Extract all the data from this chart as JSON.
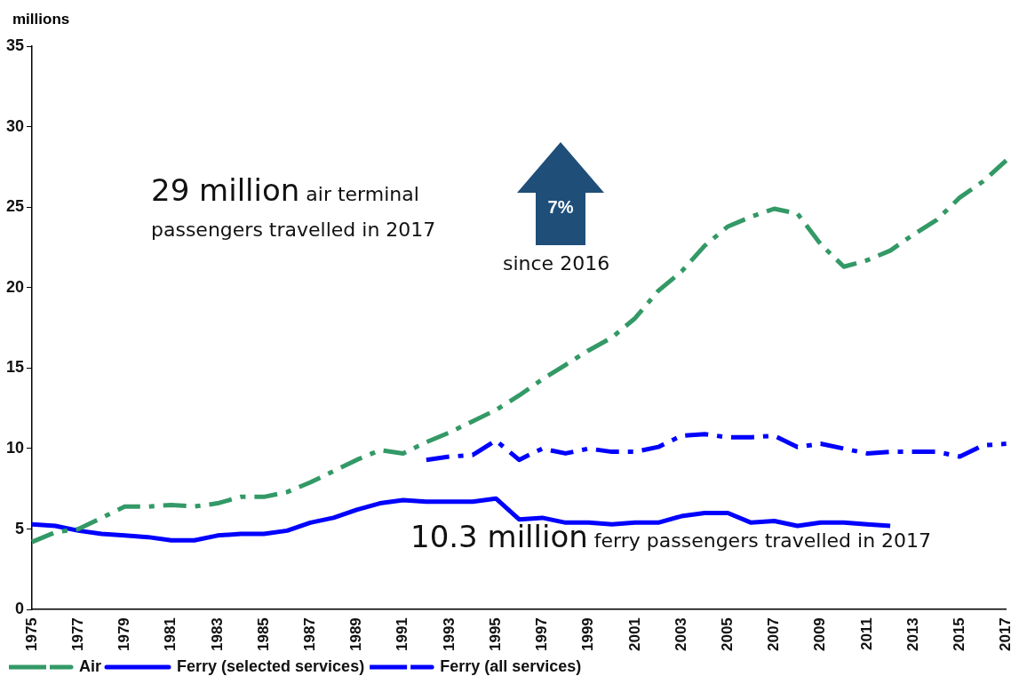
{
  "chart_data": {
    "type": "line",
    "ylabel": "millions",
    "categories": [
      "1975",
      null,
      "1977",
      null,
      "1979",
      null,
      "1981",
      null,
      "1983",
      null,
      "1985",
      null,
      "1987",
      null,
      "1989",
      null,
      "1991",
      null,
      "1993",
      null,
      "1995",
      null,
      "1997",
      null,
      "1999",
      null,
      "2001",
      null,
      "2003",
      null,
      "2005",
      null,
      "2007",
      null,
      "2009",
      null,
      "2011",
      null,
      "2013",
      null,
      "2015",
      null,
      "2017"
    ],
    "series": [
      {
        "name": "Air",
        "color": "#339966",
        "line_style": "dashed",
        "values": [
          4.2,
          4.8,
          5.0,
          5.7,
          6.4,
          6.4,
          6.5,
          6.4,
          6.6,
          7.0,
          7.0,
          7.3,
          7.9,
          8.6,
          9.3,
          9.9,
          9.7,
          10.4,
          11.0,
          11.7,
          12.4,
          13.3,
          14.3,
          15.2,
          16.1,
          16.9,
          18.1,
          19.8,
          21.0,
          22.6,
          23.8,
          24.4,
          24.9,
          24.6,
          22.7,
          21.3,
          21.7,
          22.3,
          23.3,
          24.2,
          25.6,
          26.6,
          27.9
        ]
      },
      {
        "name": "Ferry (selected services)",
        "color": "#0000ff",
        "line_style": "solid",
        "values": [
          5.3,
          5.2,
          4.9,
          4.7,
          4.6,
          4.5,
          4.3,
          4.3,
          4.6,
          4.7,
          4.7,
          4.9,
          5.4,
          5.7,
          6.2,
          6.6,
          6.8,
          6.7,
          6.7,
          6.7,
          6.9,
          5.6,
          5.7,
          5.4,
          5.4,
          5.3,
          5.4,
          5.4,
          5.8,
          6.0,
          6.0,
          5.4,
          5.5,
          5.2,
          5.4,
          5.4,
          5.3,
          5.2,
          null,
          null,
          null,
          null,
          null
        ]
      },
      {
        "name": "Ferry (all services)",
        "color": "#0000ff",
        "line_style": "dashed",
        "values": [
          null,
          null,
          null,
          null,
          null,
          null,
          null,
          null,
          null,
          null,
          null,
          null,
          null,
          null,
          null,
          null,
          null,
          9.3,
          9.5,
          9.6,
          10.5,
          9.3,
          10.0,
          9.7,
          10.0,
          9.8,
          9.8,
          10.1,
          10.8,
          10.9,
          10.7,
          10.7,
          10.8,
          10.1,
          10.3,
          10.0,
          9.7,
          9.8,
          9.8,
          9.8,
          9.5,
          10.2,
          10.3
        ]
      }
    ],
    "ylim": [
      0,
      35
    ],
    "yticks": [
      0,
      5,
      10,
      15,
      20,
      25,
      30,
      35
    ],
    "grid": false,
    "legend": "bottom",
    "marker": "none",
    "annotations": [
      "29 million",
      "air terminal passengers travelled in 2017",
      "7%",
      "since 2016",
      "10.3 million",
      "ferry passengers travelled in 2017"
    ]
  }
}
